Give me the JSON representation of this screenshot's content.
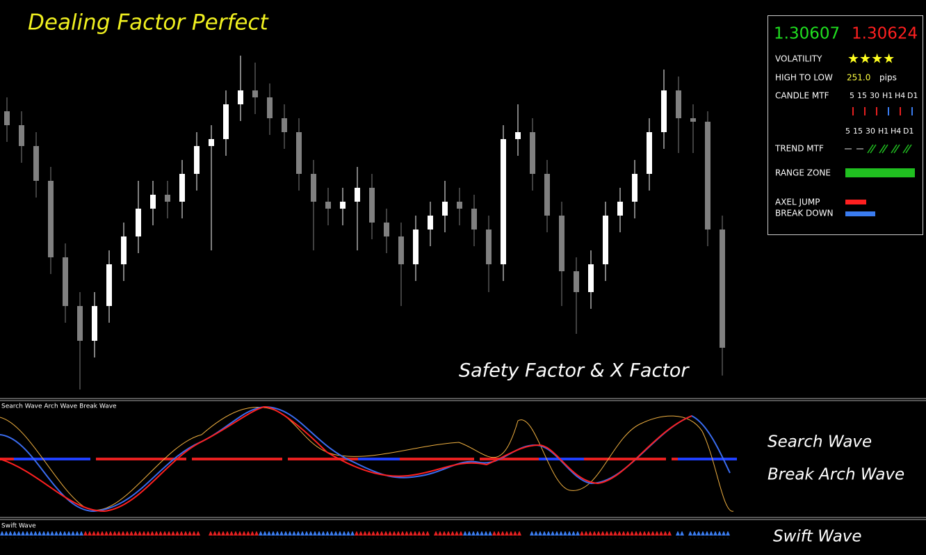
{
  "chart_data": {
    "type": "candlestick",
    "title": "Dealing Factor Perfect",
    "annotation": "Safety Factor & X Factor",
    "open": [
      1.325,
      1.324,
      1.3225,
      1.32,
      1.3145,
      1.311,
      1.3085,
      1.311,
      1.314,
      1.316,
      1.318,
      1.319,
      1.3185,
      1.3205,
      1.3225,
      1.323,
      1.3255,
      1.3265,
      1.326,
      1.3245,
      1.3235,
      1.3205,
      1.3185,
      1.318,
      1.3185,
      1.3195,
      1.317,
      1.316,
      1.314,
      1.3165,
      1.3175,
      1.3185,
      1.318,
      1.3165,
      1.314,
      1.323,
      1.3235,
      1.3205,
      1.3175,
      1.3135,
      1.312,
      1.314,
      1.3175,
      1.3185,
      1.3205,
      1.3235,
      1.3265,
      1.3245,
      1.32425,
      1.3165
    ],
    "high": [
      1.326,
      1.325,
      1.3235,
      1.321,
      1.3155,
      1.312,
      1.312,
      1.315,
      1.317,
      1.32,
      1.32,
      1.32,
      1.3215,
      1.3235,
      1.324,
      1.3265,
      1.329,
      1.3285,
      1.327,
      1.3255,
      1.3245,
      1.3215,
      1.3195,
      1.3195,
      1.321,
      1.3205,
      1.318,
      1.317,
      1.3175,
      1.3185,
      1.32,
      1.3195,
      1.319,
      1.3175,
      1.324,
      1.3255,
      1.3245,
      1.3215,
      1.3185,
      1.3145,
      1.315,
      1.3185,
      1.3195,
      1.3215,
      1.3245,
      1.328,
      1.3275,
      1.3255,
      1.325,
      1.3175
    ],
    "low": [
      1.3228,
      1.3213,
      1.3188,
      1.3133,
      1.3098,
      1.305,
      1.3073,
      1.3098,
      1.3128,
      1.3148,
      1.3168,
      1.3173,
      1.3173,
      1.3193,
      1.315,
      1.3218,
      1.3243,
      1.3248,
      1.3233,
      1.3223,
      1.3193,
      1.315,
      1.3168,
      1.3168,
      1.315,
      1.3158,
      1.3148,
      1.311,
      1.3128,
      1.3153,
      1.3163,
      1.3168,
      1.3153,
      1.312,
      1.3128,
      1.3218,
      1.3193,
      1.3163,
      1.311,
      1.309,
      1.3108,
      1.3128,
      1.3163,
      1.3173,
      1.3193,
      1.3223,
      1.322,
      1.322,
      1.3153,
      1.306
    ],
    "close": [
      1.324,
      1.3225,
      1.32,
      1.3145,
      1.311,
      1.3085,
      1.311,
      1.314,
      1.316,
      1.318,
      1.319,
      1.3185,
      1.3205,
      1.3225,
      1.323,
      1.3255,
      1.3265,
      1.326,
      1.3245,
      1.3235,
      1.3205,
      1.3185,
      1.318,
      1.3185,
      1.3195,
      1.317,
      1.316,
      1.314,
      1.3165,
      1.3175,
      1.3185,
      1.318,
      1.3165,
      1.314,
      1.323,
      1.3235,
      1.3205,
      1.3175,
      1.3135,
      1.312,
      1.314,
      1.3175,
      1.3185,
      1.3205,
      1.3235,
      1.3265,
      1.3245,
      1.32425,
      1.3165,
      1.308
    ],
    "up_color": "#ffffff",
    "down_color": "#808080",
    "ylim": [
      1.305,
      1.33
    ]
  },
  "info_panel": {
    "bid": "1.30607",
    "ask": "1.30624",
    "volatility_label": "VOLATILITY",
    "volatility": "★★★★",
    "high_low_label": "HIGH TO LOW",
    "high_low": "251.0",
    "high_low_unit": "pips",
    "candle_mtf_label": "CANDLE MTF",
    "timeframes": [
      "5",
      "15",
      "30",
      "H1",
      "H4",
      "D1"
    ],
    "trend_mtf_label": "TREND MTF",
    "range_zone_label": "RANGE ZONE",
    "axel_jump_label": "AXEL JUMP",
    "break_down_label": "BREAK DOWN"
  },
  "wave_panel": {
    "legend": "Search Wave  Arch Wave  Break Wave",
    "label_1": "Search Wave",
    "label_2": "Break Arch Wave"
  },
  "swift_panel": {
    "legend": "Swift Wave",
    "label": "Swift Wave"
  }
}
